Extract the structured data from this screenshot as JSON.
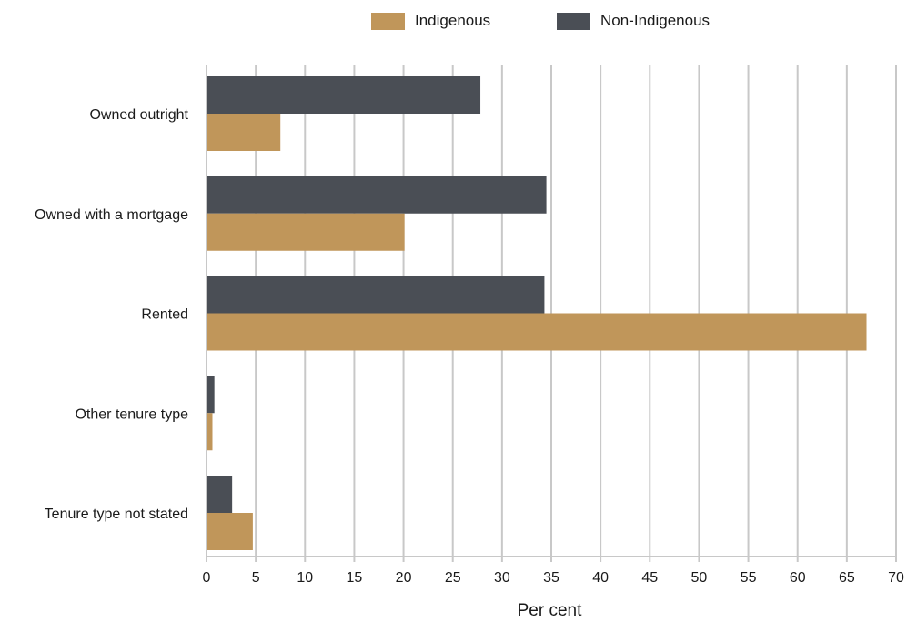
{
  "chart_data": {
    "type": "bar",
    "orientation": "horizontal",
    "categories": [
      "Owned outright",
      "Owned with a mortgage",
      "Rented",
      "Other tenure type",
      "Tenure type not stated"
    ],
    "series": [
      {
        "name": "Non-Indigenous",
        "color": "#4a4e55",
        "values": [
          27.8,
          34.5,
          34.3,
          0.8,
          2.6
        ]
      },
      {
        "name": "Indigenous",
        "color": "#c0965a",
        "values": [
          7.5,
          20.1,
          67.0,
          0.6,
          4.7
        ]
      }
    ],
    "title": "",
    "xlabel": "Per cent",
    "ylabel": "",
    "xlim": [
      0,
      70
    ],
    "xticks": [
      0,
      5,
      10,
      15,
      20,
      25,
      30,
      35,
      40,
      45,
      50,
      55,
      60,
      65,
      70
    ],
    "grid": "vertical",
    "gridline_color": "#c8c8c8",
    "legend_position": "top-center"
  }
}
